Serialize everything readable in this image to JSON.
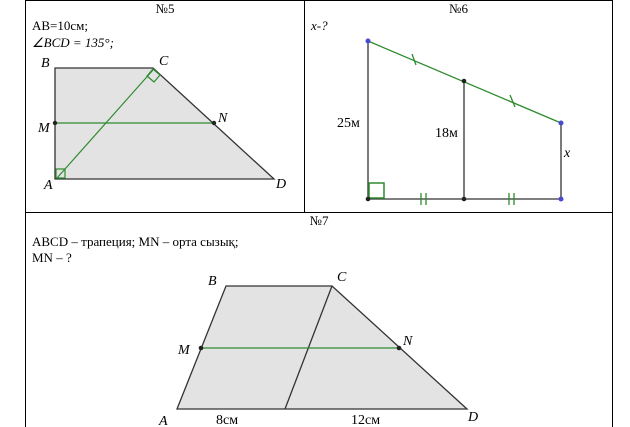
{
  "problem5": {
    "number": "№5",
    "given_line1": "AB=10см;",
    "given_line2": "∠BCD = 135°;",
    "labels": {
      "B": "B",
      "C": "C",
      "M": "M",
      "N": "N",
      "A": "A",
      "D": "D"
    }
  },
  "problem6": {
    "number": "№6",
    "question": "x-?",
    "left_height": "25м",
    "middle_height": "18м",
    "right_label": "x"
  },
  "problem7": {
    "number": "№7",
    "given_line1": "ABCD – трапеция; MN – орта сызық;",
    "given_line2": "MN – ?",
    "labels": {
      "B": "B",
      "C": "C",
      "M": "M",
      "N": "N",
      "A": "A",
      "D": "D"
    },
    "base_left": "8см",
    "base_right": "12см"
  },
  "colors": {
    "fill": "#e3e3e3",
    "outline": "#333333",
    "green": "#2e8b2e",
    "point": "#222222",
    "point_blue": "#4a4ad0"
  }
}
